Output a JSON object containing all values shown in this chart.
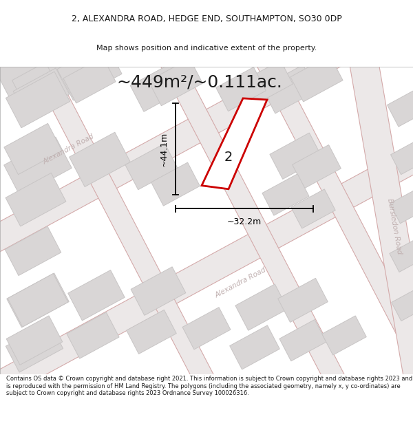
{
  "title_line1": "2, ALEXANDRA ROAD, HEDGE END, SOUTHAMPTON, SO30 0DP",
  "title_line2": "Map shows position and indicative extent of the property.",
  "area_text": "~449m²/~0.111ac.",
  "dim_height": "~44.1m",
  "dim_width": "~32.2m",
  "property_number": "2",
  "footer_text": "Contains OS data © Crown copyright and database right 2021. This information is subject to Crown copyright and database rights 2023 and is reproduced with the permission of HM Land Registry. The polygons (including the associated geometry, namely x, y co-ordinates) are subject to Crown copyright and database rights 2023 Ordnance Survey 100026316.",
  "map_bg": "#f2efef",
  "building_color": "#d9d6d6",
  "building_edge": "#c8c5c5",
  "property_fill": "#ffffff",
  "property_edge": "#cc0000",
  "road_fill": "#ece8e8",
  "road_edge": "#d4aaaa",
  "road_label_color": "#c0b0b0",
  "text_color": "#1a1a1a",
  "dim_color": "#000000",
  "title_fontsize": 9.0,
  "subtitle_fontsize": 8.0,
  "area_fontsize": 18,
  "dim_fontsize": 9,
  "prop_num_fontsize": 14,
  "road_label_fontsize": 7.5,
  "footer_fontsize": 6.0
}
